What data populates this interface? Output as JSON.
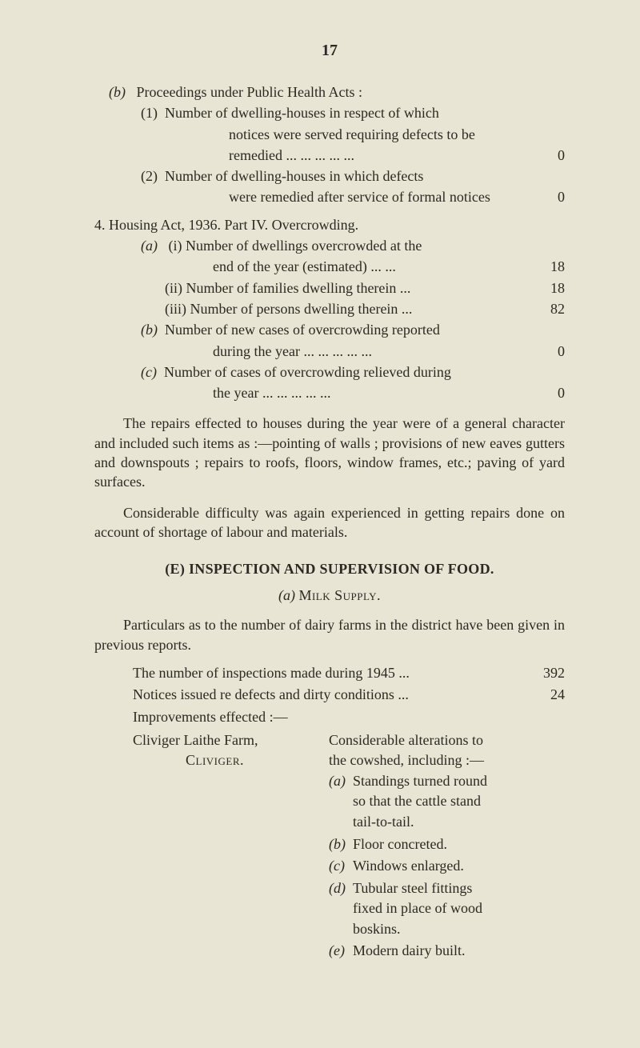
{
  "page_number": "17",
  "b_heading_marker": "(b)",
  "b_heading": "Proceedings under Public Health Acts :",
  "b1_marker": "(1)",
  "b1_l1": "Number of dwelling-houses in respect of which",
  "b1_l2": "notices were served requiring defects to be",
  "b1_l3": "remedied          ...       ...        ...       ...       ...",
  "b1_val": "0",
  "b2_marker": "(2)",
  "b2_l1": "Number of dwelling-houses in which defects",
  "b2_l2": "were remedied after service of formal notices",
  "b2_val": "0",
  "h4_l": "4. Housing Act, 1936.   Part IV.   Overcrowding.",
  "a_marker": "(a)",
  "a_i_l1": "(i)  Number of dwellings overcrowded at the",
  "a_i_l2": "end of the year (estimated)            ...      ...",
  "a_i_val": "18",
  "a_ii": "(ii)  Number of families dwelling therein        ...",
  "a_ii_val": "18",
  "a_iii": "(iii)  Number of persons dwelling therein        ...",
  "a_iii_val": "82",
  "bb_marker": "(b)",
  "bb_l1": "Number of new cases of overcrowding reported",
  "bb_l2": "during the year ...        ...        ...        ...        ...",
  "bb_val": "0",
  "cc_marker": "(c)",
  "cc_l1": "Number of cases of overcrowding relieved during",
  "cc_l2": "the year              ...        ...        ...        ...        ...",
  "cc_val": "0",
  "para1": "The repairs effected to houses during the year were of a general character and included such items as :—pointing of walls ; provisions of new eaves gutters and downspouts ; repairs to roofs, floors, window frames, etc.; paving of yard surfaces.",
  "para2": "Considerable difficulty was again experienced in getting repairs done on account of shortage of labour and materials.",
  "section_E": "(E)  INSPECTION AND SUPERVISION OF FOOD.",
  "sub_a": "(a) Milk Supply.",
  "para3": "Particulars as to the number of dairy farms in the district have been given in previous reports.",
  "stat1_label": "The number of inspections made during 1945   ...",
  "stat1_val": "392",
  "stat2_label": "Notices issued re defects and dirty conditions  ...",
  "stat2_val": "24",
  "improve": "Improvements effected :—",
  "farm_l1": "Cliviger Laithe Farm,",
  "farm_l2": "Cliviger.",
  "rcol_desc_l1": "Considerable   alterations   to",
  "rcol_desc_l2": "the  cowshed,  including :—",
  "r_a_lab": "(a)",
  "r_a_l1": "Standings   turned   round",
  "r_a_l2": "so  that  the  cattle  stand",
  "r_a_l3": "tail-to-tail.",
  "r_b_lab": "(b)",
  "r_b": "Floor   concreted.",
  "r_c_lab": "(c)",
  "r_c": "Windows  enlarged.",
  "r_d_lab": "(d)",
  "r_d_l1": "Tubular     steel     fittings",
  "r_d_l2": "fixed  in  place  of  wood",
  "r_d_l3": "boskins.",
  "r_e_lab": "(e)",
  "r_e": "Modern  dairy  built."
}
